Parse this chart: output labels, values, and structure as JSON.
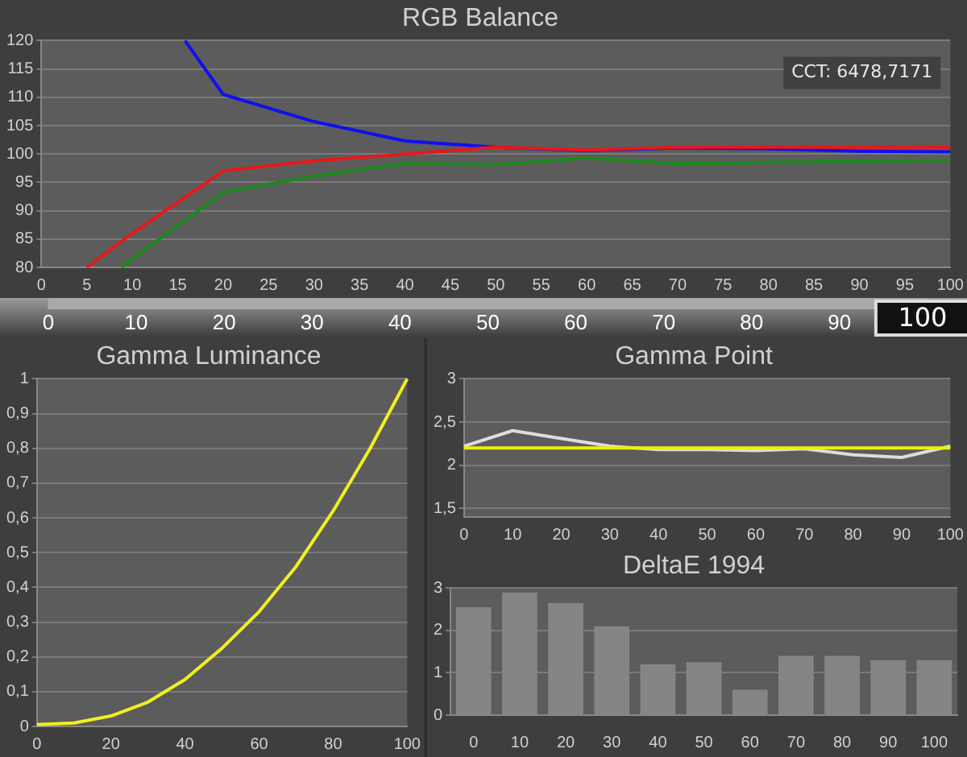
{
  "chart_data": [
    {
      "type": "line",
      "title": "RGB Balance",
      "xlim": [
        0,
        100
      ],
      "xticks": [
        0,
        5,
        10,
        15,
        20,
        25,
        30,
        35,
        40,
        45,
        50,
        55,
        60,
        65,
        70,
        75,
        80,
        85,
        90,
        95,
        100
      ],
      "ylim": [
        80,
        120
      ],
      "yticks": [
        80,
        85,
        90,
        95,
        100,
        105,
        110,
        115,
        120
      ],
      "grid": "y",
      "annotations": [
        "CCT: 6478,7171"
      ],
      "series": [
        {
          "color": "#e81818",
          "x": [
            5,
            10,
            20,
            30,
            40,
            50,
            60,
            70,
            80,
            90,
            100
          ],
          "values": [
            80,
            86,
            97,
            98.8,
            100,
            101.2,
            100.7,
            101.2,
            101.2,
            101.2,
            101.2
          ]
        },
        {
          "color": "#1a8a1a",
          "x": [
            8.8,
            10,
            20,
            30,
            40,
            50,
            60,
            70,
            80,
            90,
            100
          ],
          "values": [
            80,
            81.5,
            93.2,
            96.1,
            98.3,
            98.1,
            99.3,
            98.3,
            98.5,
            98.7,
            98.9
          ]
        },
        {
          "color": "#1010f0",
          "x": [
            15.8,
            20,
            30,
            40,
            50,
            60,
            70,
            80,
            90,
            100
          ],
          "values": [
            120,
            110.5,
            105.7,
            102.3,
            101.2,
            100.6,
            101.1,
            100.9,
            100.5,
            100.4
          ]
        }
      ]
    },
    {
      "type": "bar",
      "orientation": "horizontal",
      "categories": [
        null
      ],
      "values": [
        100
      ],
      "color": "#a8a8a8",
      "xlim": [
        -5.5,
        104.5
      ],
      "xticks": [
        0,
        10,
        20,
        30,
        40,
        50,
        60,
        70,
        80,
        90
      ],
      "data_labels": true
    },
    {
      "type": "line",
      "title": "Gamma Luminance",
      "xlim": [
        0,
        100
      ],
      "xticks": [
        0,
        20,
        40,
        60,
        80,
        {
          "value": 100,
          "label": "100"
        }
      ],
      "ylim": [
        0,
        1
      ],
      "yticks": [
        0,
        {
          "value": 0.1,
          "label": "0,1"
        },
        {
          "value": 0.2,
          "label": "0,2"
        },
        {
          "value": 0.3,
          "label": "0,3"
        },
        {
          "value": 0.4,
          "label": "0,4"
        },
        {
          "value": 0.5,
          "label": "0,5"
        },
        {
          "value": 0.6,
          "label": "0,6"
        },
        {
          "value": 0.7,
          "label": "0,7"
        },
        {
          "value": 0.8,
          "label": "0,8"
        },
        {
          "value": 0.9,
          "label": "0,9"
        },
        1
      ],
      "grid": "y",
      "series": [
        {
          "color": "#f0f020",
          "x": [
            0,
            10,
            20,
            30,
            40,
            50,
            60,
            70,
            80,
            90,
            100
          ],
          "values": [
            0.005,
            0.01,
            0.03,
            0.07,
            0.135,
            0.225,
            0.33,
            0.46,
            0.62,
            0.8,
            1
          ]
        }
      ]
    },
    {
      "type": "line",
      "title": "Gamma Point",
      "xlim": [
        0,
        100
      ],
      "xticks": [
        0,
        10,
        20,
        30,
        40,
        50,
        60,
        70,
        80,
        90,
        100
      ],
      "ylim": [
        1.4,
        3
      ],
      "yticks": [
        {
          "value": 1.5,
          "label": "1,5"
        },
        2,
        {
          "value": 2.5,
          "label": "2,5"
        },
        3
      ],
      "grid": "y",
      "ref_lines": [
        {
          "axis": "y",
          "value": 2.2,
          "color": "#eeee10"
        }
      ],
      "series": [
        {
          "color": "#dddddd",
          "x": [
            0,
            10,
            20,
            30,
            40,
            50,
            60,
            70,
            80,
            90,
            100
          ],
          "values": [
            2.22,
            2.4,
            2.31,
            2.22,
            2.18,
            2.18,
            2.17,
            2.19,
            2.12,
            2.09,
            2.22
          ]
        }
      ]
    },
    {
      "type": "bar",
      "title": "DeltaE 1994",
      "categories": [
        "0",
        "10",
        "20",
        "30",
        "40",
        "50",
        "60",
        "70",
        "80",
        "90",
        "100"
      ],
      "values": [
        2.55,
        2.9,
        2.65,
        2.1,
        1.2,
        1.25,
        0.6,
        1.4,
        1.4,
        1.3,
        1.3
      ],
      "color": "#858585",
      "ylim": [
        0,
        3
      ],
      "yticks": [
        0,
        1,
        2,
        3
      ],
      "grid": "y"
    }
  ]
}
